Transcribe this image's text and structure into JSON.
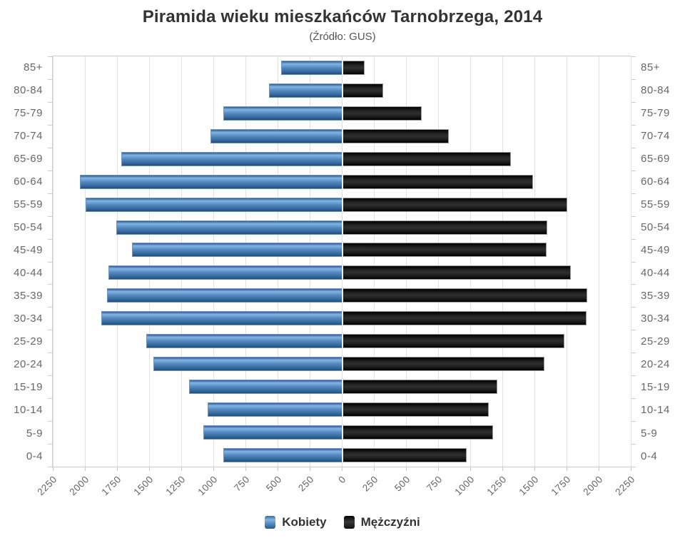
{
  "title": "Piramida wieku mieszkańców Tarnobrzega, 2014",
  "subtitle": "(Źródło: GUS)",
  "legend": {
    "items": [
      {
        "label": "Kobiety",
        "color": "#4f86bd"
      },
      {
        "label": "Mężczyźni",
        "color": "#1a1a1a"
      }
    ]
  },
  "x_axis": {
    "max": 2250,
    "step": 250,
    "tick_labels": [
      "2250",
      "2000",
      "1750",
      "1500",
      "1250",
      "1000",
      "750",
      "500",
      "250",
      "0",
      "250",
      "500",
      "750",
      "1000",
      "1250",
      "1500",
      "1750",
      "2000",
      "2250"
    ]
  },
  "chart_data": {
    "type": "bar",
    "subtype": "population-pyramid",
    "title": "Piramida wieku mieszkańców Tarnobrzega, 2014",
    "subtitle": "(Źródło: GUS)",
    "categories": [
      "85+",
      "80-84",
      "75-79",
      "70-74",
      "65-69",
      "60-64",
      "55-59",
      "50-54",
      "45-49",
      "40-44",
      "35-39",
      "30-34",
      "25-29",
      "20-24",
      "15-19",
      "10-14",
      "5-9",
      "0-4"
    ],
    "series": [
      {
        "name": "Kobiety",
        "side": "left",
        "color": "#4f86bd",
        "values": [
          470,
          565,
          920,
          1025,
          1715,
          2040,
          1995,
          1755,
          1635,
          1815,
          1830,
          1870,
          1525,
          1465,
          1190,
          1045,
          1080,
          920
        ]
      },
      {
        "name": "Mężczyźni",
        "side": "right",
        "color": "#1a1a1a",
        "values": [
          165,
          310,
          610,
          820,
          1305,
          1480,
          1745,
          1590,
          1585,
          1770,
          1900,
          1895,
          1720,
          1565,
          1200,
          1135,
          1165,
          960
        ]
      }
    ],
    "xlim": [
      0,
      2250
    ],
    "grid": true,
    "legend_position": "bottom"
  }
}
